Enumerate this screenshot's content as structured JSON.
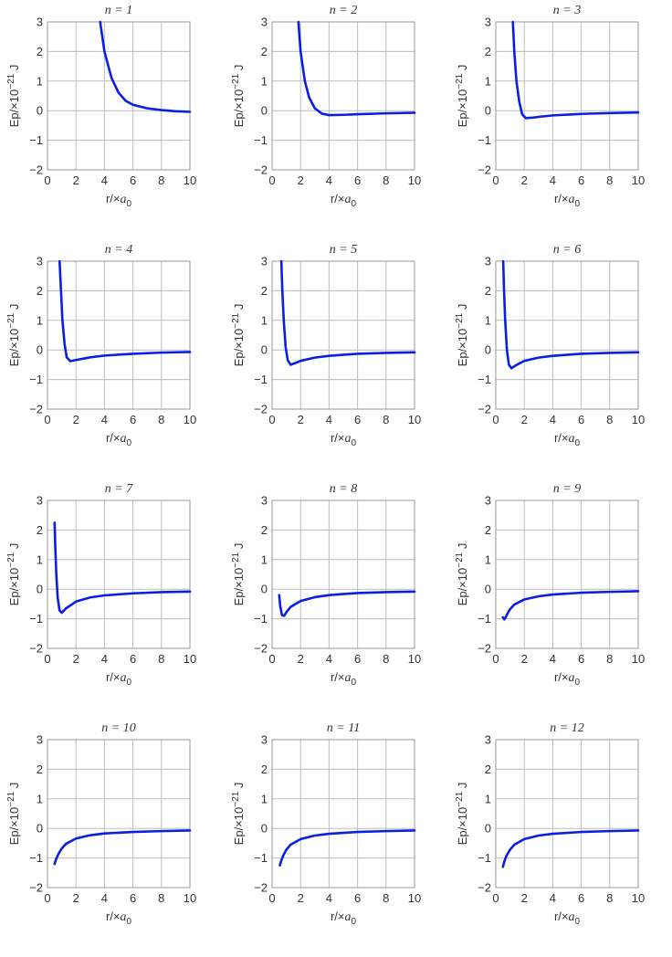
{
  "chart_data": {
    "type": "line",
    "layout": "small-multiples-4x3",
    "line_color": "#0a1ee6",
    "grid": true,
    "xlim": [
      0,
      10
    ],
    "ylim": [
      -2,
      3
    ],
    "x_ticks": [
      0,
      2,
      4,
      6,
      8,
      10
    ],
    "y_ticks": [
      -2,
      -1,
      0,
      1,
      2,
      3
    ],
    "xlabel": "r/×",
    "xlabel_var": "a",
    "xlabel_sub": "0",
    "ylabel": "Ep/×10",
    "ylabel_exp": "−21",
    "ylabel_unit": " J",
    "title_var": "n",
    "title_eq": " = ",
    "panels": [
      {
        "n": "1",
        "points": [
          [
            3.7,
            3.0
          ],
          [
            4.0,
            2.0
          ],
          [
            4.5,
            1.1
          ],
          [
            5.0,
            0.6
          ],
          [
            5.5,
            0.33
          ],
          [
            6.0,
            0.2
          ],
          [
            7.0,
            0.08
          ],
          [
            8.0,
            0.02
          ],
          [
            9.0,
            -0.02
          ],
          [
            10.0,
            -0.04
          ]
        ]
      },
      {
        "n": "2",
        "points": [
          [
            1.85,
            3.0
          ],
          [
            2.0,
            2.0
          ],
          [
            2.3,
            1.0
          ],
          [
            2.6,
            0.45
          ],
          [
            3.0,
            0.08
          ],
          [
            3.5,
            -0.1
          ],
          [
            4.0,
            -0.15
          ],
          [
            5.0,
            -0.14
          ],
          [
            6.0,
            -0.12
          ],
          [
            8.0,
            -0.09
          ],
          [
            10.0,
            -0.07
          ]
        ]
      },
      {
        "n": "3",
        "points": [
          [
            1.2,
            3.0
          ],
          [
            1.3,
            2.0
          ],
          [
            1.45,
            1.0
          ],
          [
            1.65,
            0.3
          ],
          [
            1.85,
            -0.12
          ],
          [
            2.1,
            -0.25
          ],
          [
            2.5,
            -0.24
          ],
          [
            3.0,
            -0.21
          ],
          [
            4.0,
            -0.16
          ],
          [
            6.0,
            -0.11
          ],
          [
            8.0,
            -0.08
          ],
          [
            10.0,
            -0.06
          ]
        ]
      },
      {
        "n": "4",
        "points": [
          [
            0.85,
            3.0
          ],
          [
            0.95,
            2.0
          ],
          [
            1.05,
            1.0
          ],
          [
            1.2,
            0.2
          ],
          [
            1.35,
            -0.25
          ],
          [
            1.6,
            -0.38
          ],
          [
            2.0,
            -0.34
          ],
          [
            3.0,
            -0.25
          ],
          [
            4.0,
            -0.19
          ],
          [
            6.0,
            -0.13
          ],
          [
            8.0,
            -0.09
          ],
          [
            10.0,
            -0.07
          ]
        ]
      },
      {
        "n": "5",
        "points": [
          [
            0.65,
            3.0
          ],
          [
            0.72,
            2.0
          ],
          [
            0.82,
            1.0
          ],
          [
            0.95,
            0.1
          ],
          [
            1.1,
            -0.35
          ],
          [
            1.3,
            -0.5
          ],
          [
            1.6,
            -0.45
          ],
          [
            2.0,
            -0.37
          ],
          [
            3.0,
            -0.26
          ],
          [
            4.0,
            -0.2
          ],
          [
            6.0,
            -0.13
          ],
          [
            8.0,
            -0.1
          ],
          [
            10.0,
            -0.08
          ]
        ]
      },
      {
        "n": "6",
        "points": [
          [
            0.52,
            3.0
          ],
          [
            0.58,
            2.0
          ],
          [
            0.66,
            1.0
          ],
          [
            0.78,
            0.0
          ],
          [
            0.92,
            -0.5
          ],
          [
            1.1,
            -0.62
          ],
          [
            1.4,
            -0.52
          ],
          [
            2.0,
            -0.37
          ],
          [
            3.0,
            -0.26
          ],
          [
            4.0,
            -0.2
          ],
          [
            6.0,
            -0.13
          ],
          [
            8.0,
            -0.1
          ],
          [
            10.0,
            -0.08
          ]
        ]
      },
      {
        "n": "7",
        "points": [
          [
            0.5,
            2.25
          ],
          [
            0.55,
            1.4
          ],
          [
            0.62,
            0.5
          ],
          [
            0.72,
            -0.3
          ],
          [
            0.85,
            -0.72
          ],
          [
            1.0,
            -0.8
          ],
          [
            1.3,
            -0.65
          ],
          [
            2.0,
            -0.42
          ],
          [
            3.0,
            -0.28
          ],
          [
            4.0,
            -0.21
          ],
          [
            6.0,
            -0.14
          ],
          [
            8.0,
            -0.1
          ],
          [
            10.0,
            -0.08
          ]
        ]
      },
      {
        "n": "8",
        "points": [
          [
            0.5,
            -0.2
          ],
          [
            0.58,
            -0.6
          ],
          [
            0.7,
            -0.88
          ],
          [
            0.85,
            -0.9
          ],
          [
            1.0,
            -0.78
          ],
          [
            1.3,
            -0.6
          ],
          [
            2.0,
            -0.4
          ],
          [
            3.0,
            -0.27
          ],
          [
            4.0,
            -0.2
          ],
          [
            6.0,
            -0.13
          ],
          [
            8.0,
            -0.1
          ],
          [
            10.0,
            -0.08
          ]
        ]
      },
      {
        "n": "9",
        "points": [
          [
            0.5,
            -0.95
          ],
          [
            0.6,
            -1.02
          ],
          [
            0.7,
            -0.95
          ],
          [
            0.85,
            -0.8
          ],
          [
            1.0,
            -0.68
          ],
          [
            1.3,
            -0.52
          ],
          [
            2.0,
            -0.35
          ],
          [
            3.0,
            -0.24
          ],
          [
            4.0,
            -0.18
          ],
          [
            6.0,
            -0.12
          ],
          [
            8.0,
            -0.09
          ],
          [
            10.0,
            -0.07
          ]
        ]
      },
      {
        "n": "10",
        "points": [
          [
            0.5,
            -1.2
          ],
          [
            0.6,
            -1.05
          ],
          [
            0.75,
            -0.88
          ],
          [
            1.0,
            -0.68
          ],
          [
            1.3,
            -0.52
          ],
          [
            2.0,
            -0.34
          ],
          [
            3.0,
            -0.23
          ],
          [
            4.0,
            -0.17
          ],
          [
            6.0,
            -0.12
          ],
          [
            8.0,
            -0.09
          ],
          [
            10.0,
            -0.07
          ]
        ]
      },
      {
        "n": "11",
        "points": [
          [
            0.55,
            -1.25
          ],
          [
            0.65,
            -1.08
          ],
          [
            0.8,
            -0.9
          ],
          [
            1.0,
            -0.72
          ],
          [
            1.3,
            -0.55
          ],
          [
            2.0,
            -0.36
          ],
          [
            3.0,
            -0.24
          ],
          [
            4.0,
            -0.18
          ],
          [
            6.0,
            -0.12
          ],
          [
            8.0,
            -0.09
          ],
          [
            10.0,
            -0.07
          ]
        ]
      },
      {
        "n": "12",
        "points": [
          [
            0.5,
            -1.3
          ],
          [
            0.6,
            -1.12
          ],
          [
            0.75,
            -0.92
          ],
          [
            1.0,
            -0.72
          ],
          [
            1.3,
            -0.55
          ],
          [
            2.0,
            -0.36
          ],
          [
            3.0,
            -0.24
          ],
          [
            4.0,
            -0.18
          ],
          [
            6.0,
            -0.12
          ],
          [
            8.0,
            -0.09
          ],
          [
            10.0,
            -0.07
          ]
        ]
      }
    ]
  }
}
